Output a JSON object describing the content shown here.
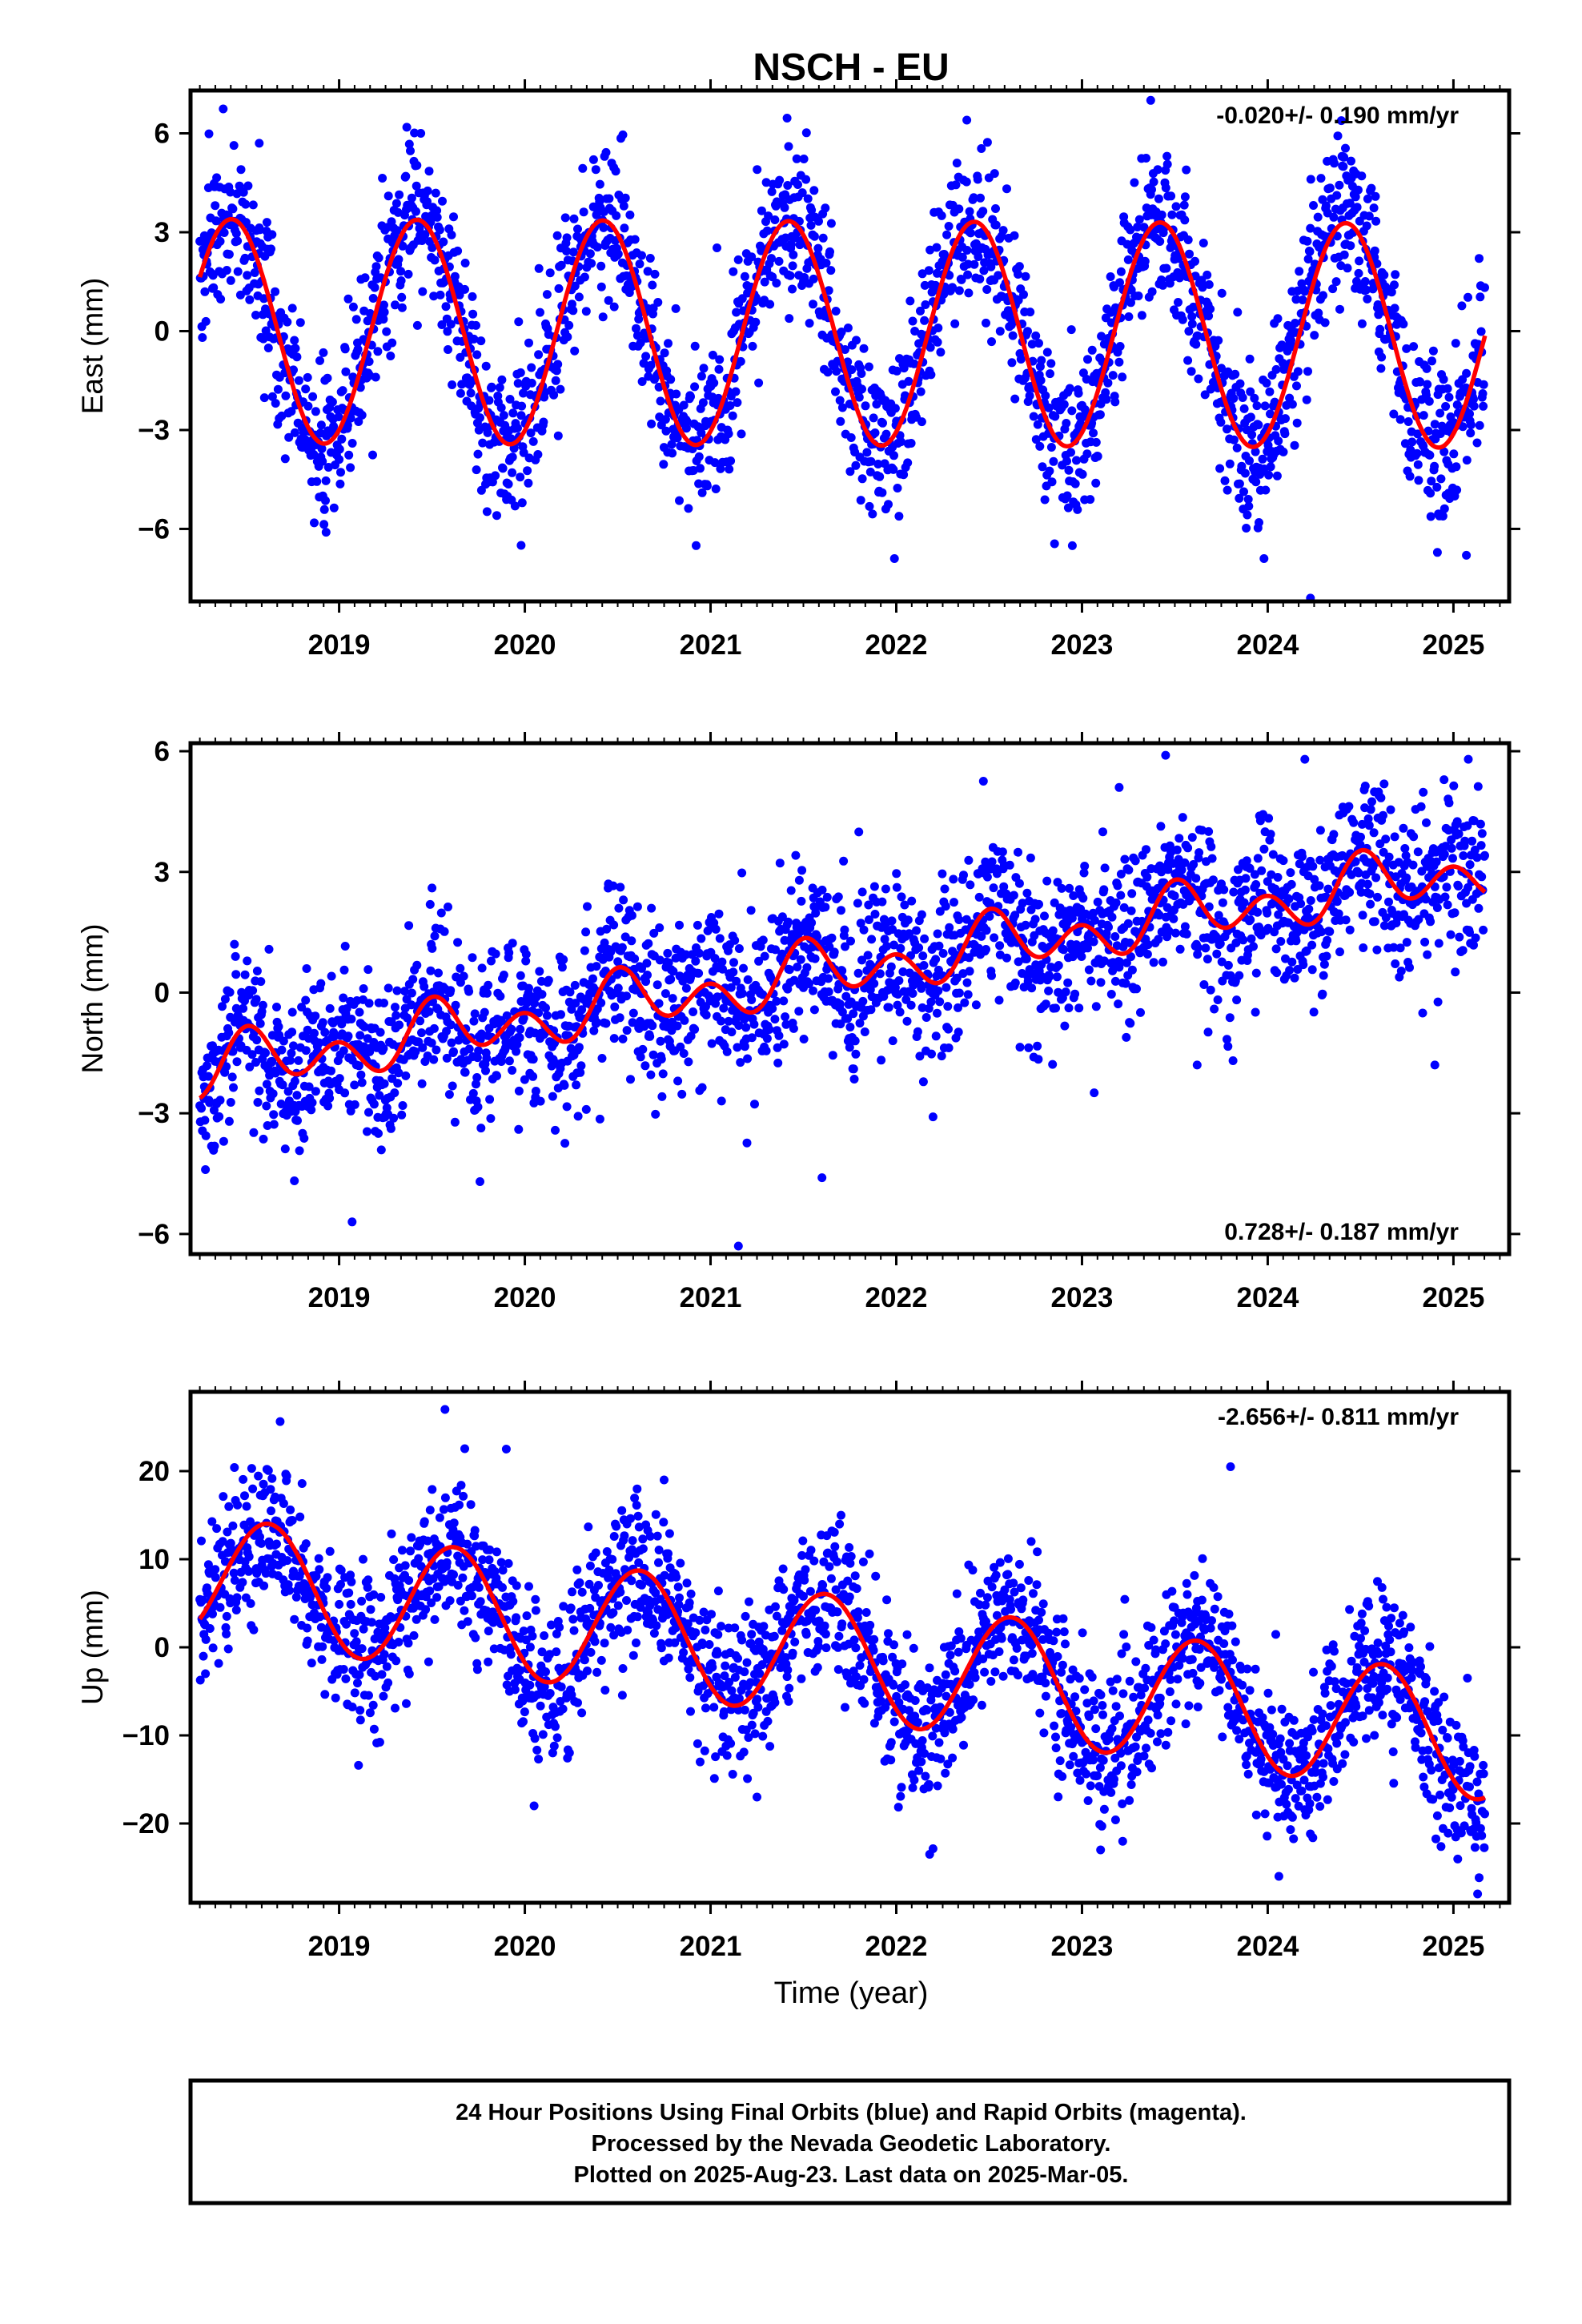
{
  "title": "NSCH - EU",
  "colors": {
    "points": "#0000ff",
    "fit": "#ff0000",
    "frame": "#000000"
  },
  "x_axis": {
    "ticks": [
      "2019",
      "2020",
      "2021",
      "2022",
      "2023",
      "2024",
      "2025"
    ],
    "xlabel": "Time (year)",
    "xlim": [
      2018.2,
      2025.3
    ]
  },
  "footer": {
    "line1": "24 Hour Positions Using Final Orbits (blue) and Rapid Orbits (magenta).",
    "line2": "Processed by the Nevada Geodetic Laboratory.",
    "line3": "Plotted on 2025-Aug-23. Last data on 2025-Mar-05."
  },
  "chart_data": [
    {
      "type": "scatter",
      "ylabel": "East (mm)",
      "ylim": [
        -8.2,
        7.3
      ],
      "yticks": [
        6,
        3,
        0,
        -3,
        -6
      ],
      "ytick_labels": [
        "6",
        "3",
        "0",
        "−3",
        "−6"
      ],
      "rate_label": "-0.020+/- 0.190 mm/yr",
      "rate_position": "top-right",
      "x_start": 2018.25,
      "x_end": 2025.17,
      "fit": {
        "name": "fit",
        "rate": -0.02,
        "mean": 0.0,
        "ref_year": 2018.25,
        "annual_amp": 3.4,
        "annual_peak": 2019.42,
        "semi_amp": 0.0,
        "semi_peak": 0.0
      },
      "noise_sd": 1.2,
      "outliers": [
        [
          2018.57,
          5.7
        ],
        [
          2019.44,
          6.0
        ],
        [
          2023.37,
          7.0
        ],
        [
          2024.23,
          -8.1
        ],
        [
          2024.4,
          5.3
        ],
        [
          2022.38,
          6.4
        ],
        [
          2019.98,
          -6.5
        ],
        [
          2021.99,
          -6.9
        ],
        [
          2023.98,
          -6.9
        ],
        [
          2025.07,
          -6.8
        ],
        [
          2018.93,
          -6.1
        ],
        [
          2020.37,
          5.2
        ]
      ]
    },
    {
      "type": "scatter",
      "ylabel": "North (mm)",
      "ylim": [
        -6.5,
        6.2
      ],
      "yticks": [
        6,
        3,
        0,
        -3,
        -6
      ],
      "ytick_labels": [
        "6",
        "3",
        "0",
        "−3",
        "−6"
      ],
      "rate_label": "0.728+/- 0.187 mm/yr",
      "rate_position": "bottom-right",
      "x_start": 2018.25,
      "x_end": 2025.17,
      "fit": {
        "name": "fit",
        "rate": 0.728,
        "mean": -1.95,
        "ref_year": 2018.25,
        "annual_amp": 0.4,
        "annual_peak": 2018.55,
        "semi_amp": 0.55,
        "semi_peak": 2018.5
      },
      "noise_sd": 1.0,
      "outliers": [
        [
          2023.45,
          5.9
        ],
        [
          2024.2,
          5.8
        ],
        [
          2025.08,
          5.8
        ],
        [
          2023.2,
          5.1
        ],
        [
          2019.07,
          -5.7
        ],
        [
          2021.15,
          -6.3
        ],
        [
          2021.6,
          -4.6
        ],
        [
          2018.28,
          -4.4
        ],
        [
          2019.5,
          2.6
        ],
        [
          2020.45,
          2.7
        ],
        [
          2023.62,
          -1.8
        ],
        [
          2024.9,
          -1.8
        ],
        [
          2021.55,
          2.6
        ]
      ]
    },
    {
      "type": "scatter",
      "ylabel": "Up (mm)",
      "ylim": [
        -29,
        29
      ],
      "yticks": [
        20,
        10,
        0,
        -10,
        -20
      ],
      "ytick_labels": [
        "20",
        "10",
        "0",
        "−10",
        "−20"
      ],
      "rate_label": "-2.656+/- 0.811 mm/yr",
      "rate_position": "top-right",
      "x_start": 2018.25,
      "x_end": 2025.17,
      "fit": {
        "name": "fit",
        "rate": -2.656,
        "mean": 8.0,
        "ref_year": 2018.25,
        "annual_amp": 7.0,
        "annual_peak": 2018.62,
        "semi_amp": 0.0,
        "semi_peak": 0.0
      },
      "noise_sd": 4.2,
      "outliers": [
        [
          2019.57,
          27.0
        ],
        [
          2023.8,
          20.5
        ],
        [
          2020.05,
          -18.0
        ],
        [
          2022.18,
          -23.5
        ],
        [
          2023.1,
          -23.0
        ],
        [
          2024.06,
          -26.0
        ],
        [
          2025.13,
          -28.0
        ],
        [
          2018.28,
          -3.0
        ],
        [
          2019.9,
          22.5
        ],
        [
          2020.75,
          19.0
        ],
        [
          2021.25,
          -17.0
        ]
      ]
    }
  ]
}
